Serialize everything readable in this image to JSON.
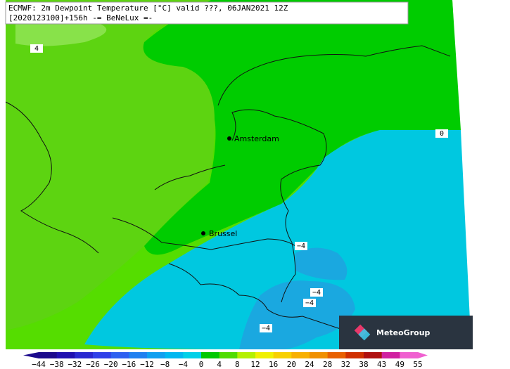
{
  "header": {
    "line1": "ECMWF: 2m Dewpoint Temperature [°C] valid ???, 06JAN2021 12Z",
    "line2": "[2020123100]+156h -= BeNeLux =-"
  },
  "cities": [
    {
      "name": "Amsterdam"
    },
    {
      "name": "Brussel"
    }
  ],
  "contour_labels": [
    "4",
    "0",
    "−4",
    "−4",
    "−4",
    "−4"
  ],
  "colorbar": {
    "labels": [
      "−44",
      "−38",
      "−32",
      "−26",
      "−20",
      "−16",
      "−12",
      "−8",
      "−4",
      "0",
      "4",
      "8",
      "12",
      "16",
      "20",
      "24",
      "28",
      "32",
      "38",
      "43",
      "49",
      "55"
    ],
    "colors": [
      "#1c0a8c",
      "#2010b0",
      "#2a28d0",
      "#3040e8",
      "#2f60f0",
      "#2080f0",
      "#10a0f0",
      "#00b8f0",
      "#00d0e8",
      "#00c800",
      "#50dc00",
      "#b4f000",
      "#f0f000",
      "#f8d000",
      "#f8b000",
      "#f09000",
      "#e86000",
      "#d03000",
      "#b01010",
      "#d020a0",
      "#f060d0"
    ]
  },
  "logo": "MeteoGroup"
}
